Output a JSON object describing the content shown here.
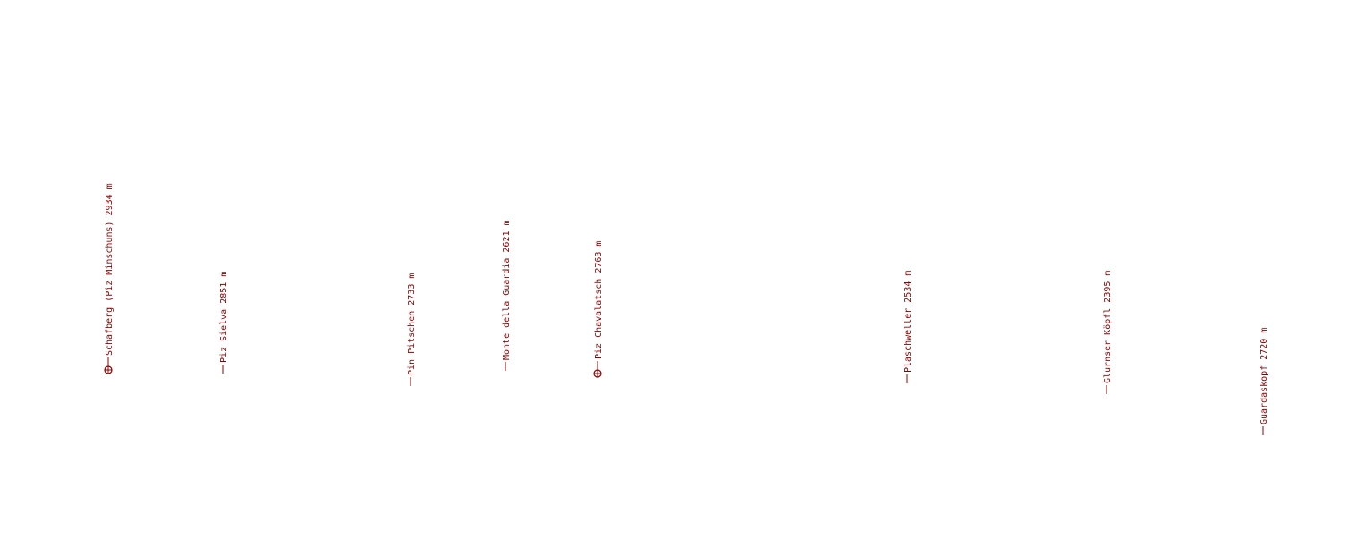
{
  "peaks": [
    {
      "label": "Schafberg (Piz Minschuns) 2934 m"
    },
    {
      "label": "Piz Sielva 2851 m"
    },
    {
      "label": "Pin Pitschen 2733 m"
    },
    {
      "label": "Monte della Guardia 2621 m"
    },
    {
      "label": "Piz Chavalatsch 2763 m"
    },
    {
      "label": "Plaschweller 2534 m"
    },
    {
      "label": "Glurnser Köpfl 2395 m"
    },
    {
      "label": "Guardaskopf 2720 m"
    }
  ]
}
